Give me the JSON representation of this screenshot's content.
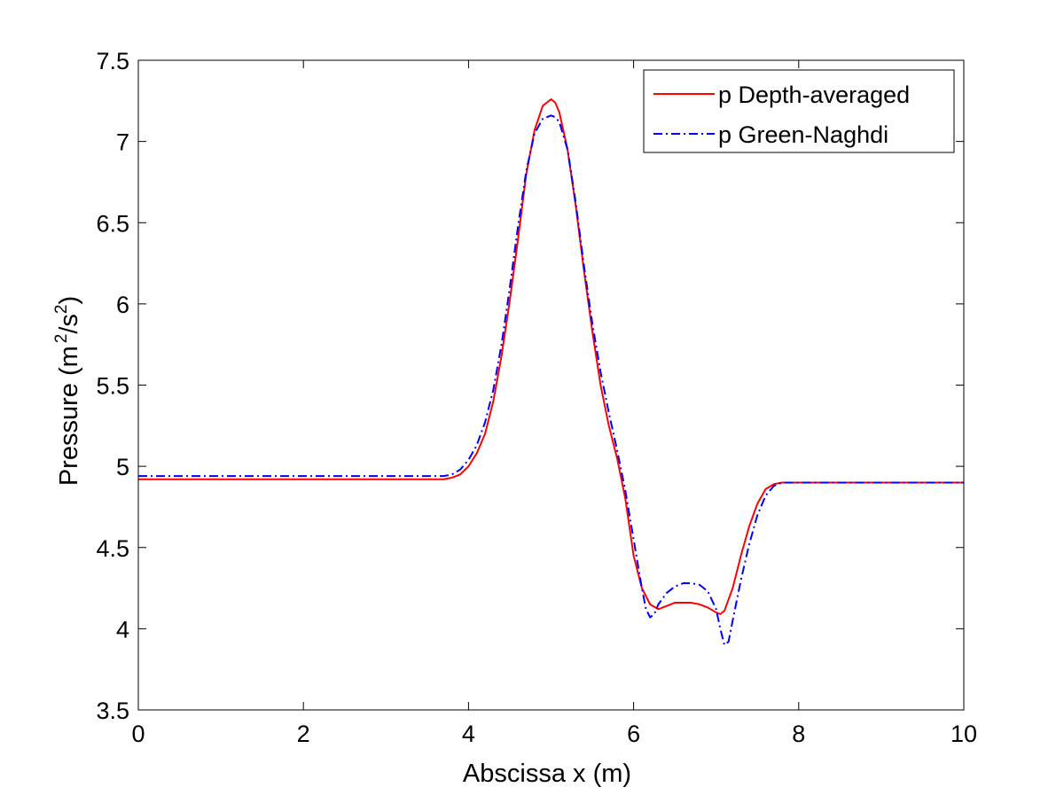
{
  "chart_data": {
    "type": "line",
    "title": "",
    "xlabel": "Abscissa x (m)",
    "ylabel": {
      "prefix": "Pressure (m",
      "sup1": "2",
      "mid": "/s",
      "sup2": "2",
      "suffix": ")"
    },
    "xlim": [
      0,
      10
    ],
    "ylim": [
      3.5,
      7.5
    ],
    "xticks": [
      0,
      2,
      4,
      6,
      8,
      10
    ],
    "yticks": [
      3.5,
      4,
      4.5,
      5,
      5.5,
      6,
      6.5,
      7,
      7.5
    ],
    "xtick_labels": [
      "0",
      "2",
      "4",
      "6",
      "8",
      "10"
    ],
    "ytick_labels": [
      "3.5",
      "4",
      "4.5",
      "5",
      "5.5",
      "6",
      "6.5",
      "7",
      "7.5"
    ],
    "grid": false,
    "legend_position": "top-right",
    "series": [
      {
        "name": "p Depth-averaged",
        "color": "#ff0000",
        "style": "solid",
        "x": [
          0,
          1,
          2,
          3,
          3.5,
          3.7,
          3.8,
          3.9,
          4.0,
          4.1,
          4.2,
          4.3,
          4.4,
          4.5,
          4.6,
          4.7,
          4.8,
          4.9,
          5.0,
          5.05,
          5.1,
          5.2,
          5.3,
          5.4,
          5.5,
          5.6,
          5.7,
          5.8,
          5.9,
          6.0,
          6.1,
          6.2,
          6.3,
          6.4,
          6.5,
          6.6,
          6.7,
          6.8,
          6.9,
          7.0,
          7.05,
          7.1,
          7.2,
          7.3,
          7.4,
          7.5,
          7.6,
          7.7,
          7.8,
          7.9,
          8.0,
          8.5,
          9,
          10
        ],
        "y": [
          4.92,
          4.92,
          4.92,
          4.92,
          4.92,
          4.92,
          4.93,
          4.95,
          5.0,
          5.08,
          5.2,
          5.4,
          5.68,
          6.02,
          6.4,
          6.8,
          7.07,
          7.22,
          7.26,
          7.24,
          7.18,
          6.95,
          6.6,
          6.2,
          5.83,
          5.5,
          5.25,
          5.05,
          4.8,
          4.45,
          4.25,
          4.15,
          4.12,
          4.14,
          4.16,
          4.16,
          4.16,
          4.15,
          4.13,
          4.1,
          4.09,
          4.11,
          4.25,
          4.45,
          4.63,
          4.77,
          4.86,
          4.89,
          4.9,
          4.9,
          4.9,
          4.9,
          4.9,
          4.9
        ]
      },
      {
        "name": "p Green-Naghdi",
        "color": "#0000ff",
        "style": "dashdot",
        "x": [
          0,
          1,
          2,
          3,
          3.5,
          3.7,
          3.8,
          3.9,
          4.0,
          4.1,
          4.2,
          4.3,
          4.4,
          4.5,
          4.6,
          4.7,
          4.8,
          4.9,
          5.0,
          5.05,
          5.1,
          5.2,
          5.3,
          5.4,
          5.5,
          5.6,
          5.7,
          5.8,
          5.9,
          6.0,
          6.1,
          6.15,
          6.2,
          6.25,
          6.3,
          6.4,
          6.5,
          6.6,
          6.7,
          6.8,
          6.9,
          7.0,
          7.05,
          7.1,
          7.15,
          7.2,
          7.3,
          7.4,
          7.5,
          7.6,
          7.7,
          7.8,
          7.9,
          8.0,
          8.5,
          9,
          10
        ],
        "y": [
          4.94,
          4.94,
          4.94,
          4.94,
          4.94,
          4.94,
          4.95,
          4.98,
          5.04,
          5.13,
          5.27,
          5.47,
          5.75,
          6.1,
          6.48,
          6.82,
          7.05,
          7.14,
          7.16,
          7.15,
          7.12,
          6.95,
          6.62,
          6.23,
          5.88,
          5.58,
          5.33,
          5.1,
          4.85,
          4.55,
          4.25,
          4.12,
          4.07,
          4.09,
          4.15,
          4.22,
          4.26,
          4.28,
          4.28,
          4.27,
          4.23,
          4.12,
          4.0,
          3.9,
          3.92,
          4.05,
          4.3,
          4.52,
          4.7,
          4.82,
          4.88,
          4.9,
          4.9,
          4.9,
          4.9,
          4.9,
          4.9
        ]
      }
    ]
  }
}
